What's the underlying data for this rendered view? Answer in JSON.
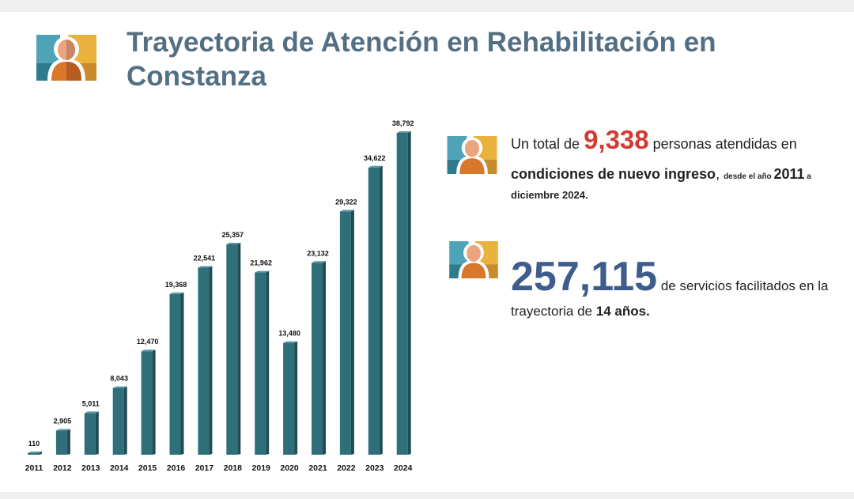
{
  "header": {
    "title": "Trayectoria de Atención en Rehabilitación en Constanza"
  },
  "stat1": {
    "prefix": "Un total de ",
    "number": "9,338",
    "suffix": " personas atendidas en",
    "bold_line": "condiciones de nuevo ingreso",
    "comma": ", ",
    "small": "desde el año ",
    "year": "2011",
    "small2": " a",
    "end": "diciembre 2024."
  },
  "stat2": {
    "number": "257,115",
    "suffix": " de servicios facilitados en la",
    "line2_prefix": "trayectoria de ",
    "line2_bold": "14 años."
  },
  "colors": {
    "bar": "#2f6f7a",
    "title": "#536f84",
    "highlight_red": "#d23b32",
    "highlight_blue": "#3f5d8c"
  },
  "chart_data": {
    "type": "bar",
    "categories": [
      "2011",
      "2012",
      "2013",
      "2014",
      "2015",
      "2016",
      "2017",
      "2018",
      "2019",
      "2020",
      "2021",
      "2022",
      "2023",
      "2024"
    ],
    "values": [
      110,
      2905,
      5011,
      8043,
      12470,
      19368,
      22541,
      25357,
      21962,
      13480,
      23132,
      29322,
      34622,
      38792
    ],
    "labels": [
      "110",
      "2,905",
      "5,011",
      "8,043",
      "12,470",
      "19,368",
      "22,541",
      "25,357",
      "21,962",
      "13,480",
      "23,132",
      "29,322",
      "34,622",
      "38,792"
    ],
    "ylim": [
      0,
      38792
    ],
    "grid": false,
    "style": "3d-columns"
  }
}
